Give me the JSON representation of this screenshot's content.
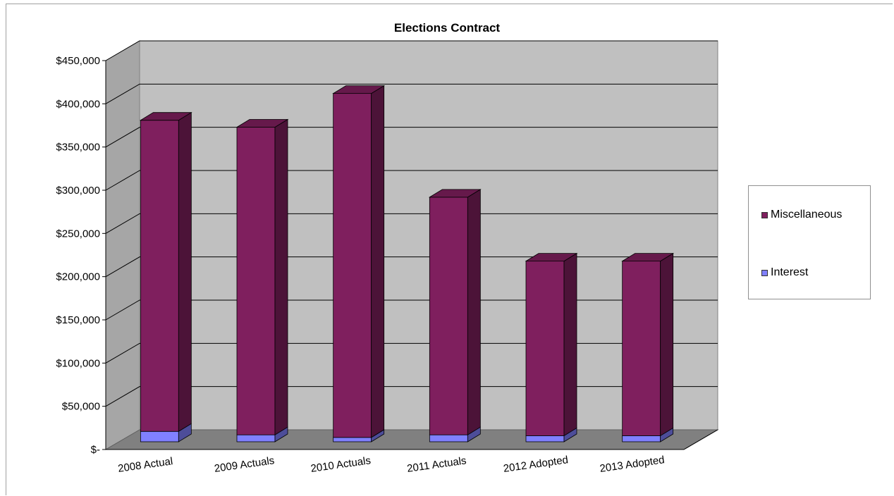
{
  "chart_data": {
    "type": "bar",
    "stacked": true,
    "three_d": true,
    "title": "Elections Contract",
    "categories": [
      "2008 Actual",
      "2009 Actuals",
      "2010 Actuals",
      "2011 Actuals",
      "2012 Adopted",
      "2013 Adopted"
    ],
    "series": [
      {
        "name": "Interest",
        "values": [
          12000,
          8000,
          5000,
          8000,
          7000,
          7000
        ],
        "color": "#8080ff"
      },
      {
        "name": "Miscellaneous",
        "values": [
          360000,
          356000,
          398000,
          275000,
          202000,
          202000
        ],
        "color": "#7f1f5e"
      }
    ],
    "ylim": [
      0,
      450000
    ],
    "yticks": [
      "$-",
      "$50,000",
      "$100,000",
      "$150,000",
      "$200,000",
      "$250,000",
      "$300,000",
      "$350,000",
      "$400,000",
      "$450,000"
    ],
    "grid": true,
    "legend_position": "right",
    "wall_color": "#c0c0c0",
    "floor_color": "#808080"
  }
}
